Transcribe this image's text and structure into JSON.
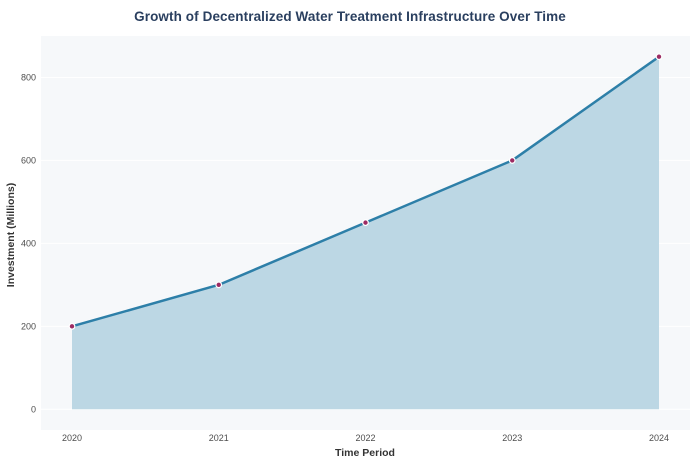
{
  "chart_data": {
    "type": "area",
    "title": "Growth of Decentralized Water Treatment Infrastructure Over Time",
    "xlabel": "Time Period",
    "ylabel": "Investment (Millions)",
    "categories": [
      "2020",
      "2021",
      "2022",
      "2023",
      "2024"
    ],
    "series": [
      {
        "name": "Investment",
        "values": [
          200,
          300,
          450,
          600,
          850
        ]
      }
    ],
    "yticks": [
      0,
      200,
      400,
      600,
      800
    ],
    "ylim": [
      -50,
      900
    ],
    "grid": "horizontal-white",
    "legend": "none",
    "colors": {
      "line": "#2d7fa8",
      "fill": "#bcd7e4",
      "marker": "#9c2b63",
      "marker_edge": "#ffffff",
      "plot_background": "#f6f8fa",
      "grid": "#ffffff",
      "title_text": "#2a3f5f",
      "axis_label_text": "#333333",
      "tick_text": "#4d4d4d",
      "page_background": "#ffffff"
    }
  }
}
